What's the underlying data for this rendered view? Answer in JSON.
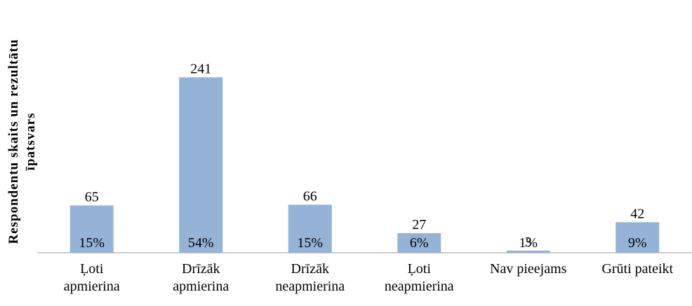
{
  "chart_data": {
    "type": "bar",
    "y_label": "Respondentu skaits un rezultātu\nīpatsvars",
    "categories": [
      "Ļoti\napmierina",
      "Drīzāk\napmierina",
      "Drīzāk\nneapmierina",
      "Ļoti\nneapmierina",
      "Nav pieejams",
      "Grūti pateikt"
    ],
    "values": [
      65,
      241,
      66,
      27,
      3,
      42
    ],
    "percent": [
      15,
      54,
      15,
      6,
      1,
      9
    ],
    "percent_labels": [
      "15%",
      "54%",
      "15%",
      "6%",
      "1%",
      "9%"
    ],
    "color": "#95b3d7",
    "ylim": [
      0,
      300
    ]
  }
}
